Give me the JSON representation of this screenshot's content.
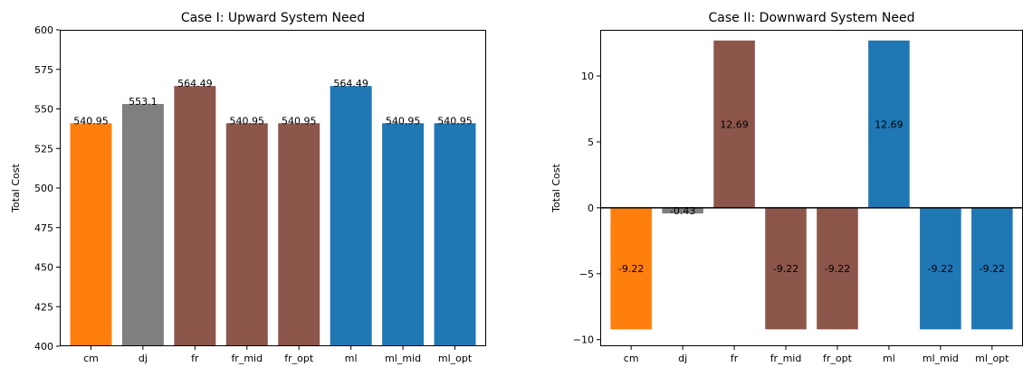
{
  "chart_data": [
    {
      "type": "bar",
      "title": "Case I: Upward System Need",
      "xlabel": "",
      "ylabel": "Total Cost",
      "ylim": [
        400,
        600
      ],
      "yticks": [
        400,
        425,
        450,
        475,
        500,
        525,
        550,
        575,
        600
      ],
      "categories": [
        "cm",
        "dj",
        "fr",
        "fr_mid",
        "fr_opt",
        "ml",
        "ml_mid",
        "ml_opt"
      ],
      "values": [
        540.95,
        553.1,
        564.49,
        540.95,
        540.95,
        564.49,
        540.95,
        540.95
      ],
      "data_labels": [
        "540.95",
        "553.1",
        "564.49",
        "540.95",
        "540.95",
        "564.49",
        "540.95",
        "540.95"
      ],
      "label_position": "top",
      "colors": [
        "#ff7f0e",
        "#7f7f7f",
        "#8c564b",
        "#8c564b",
        "#8c564b",
        "#1f77b4",
        "#1f77b4",
        "#1f77b4"
      ],
      "grid": false,
      "zero_line": false
    },
    {
      "type": "bar",
      "title": "Case II: Downward System Need",
      "xlabel": "",
      "ylabel": "Total Cost",
      "ylim": [
        -10.5,
        13.5
      ],
      "yticks": [
        -10,
        -5,
        0,
        5,
        10
      ],
      "ytick_labels": [
        "−10",
        "−5",
        "0",
        "5",
        "10"
      ],
      "categories": [
        "cm",
        "dj",
        "fr",
        "fr_mid",
        "fr_opt",
        "ml",
        "ml_mid",
        "ml_opt"
      ],
      "values": [
        -9.22,
        -0.43,
        12.69,
        -9.22,
        -9.22,
        12.69,
        -9.22,
        -9.22
      ],
      "data_labels": [
        "-9.22",
        "-0.43",
        "12.69",
        "-9.22",
        "-9.22",
        "12.69",
        "-9.22",
        "-9.22"
      ],
      "label_position": "center",
      "colors": [
        "#ff7f0e",
        "#7f7f7f",
        "#8c564b",
        "#8c564b",
        "#8c564b",
        "#1f77b4",
        "#1f77b4",
        "#1f77b4"
      ],
      "grid": false,
      "zero_line": true
    }
  ]
}
